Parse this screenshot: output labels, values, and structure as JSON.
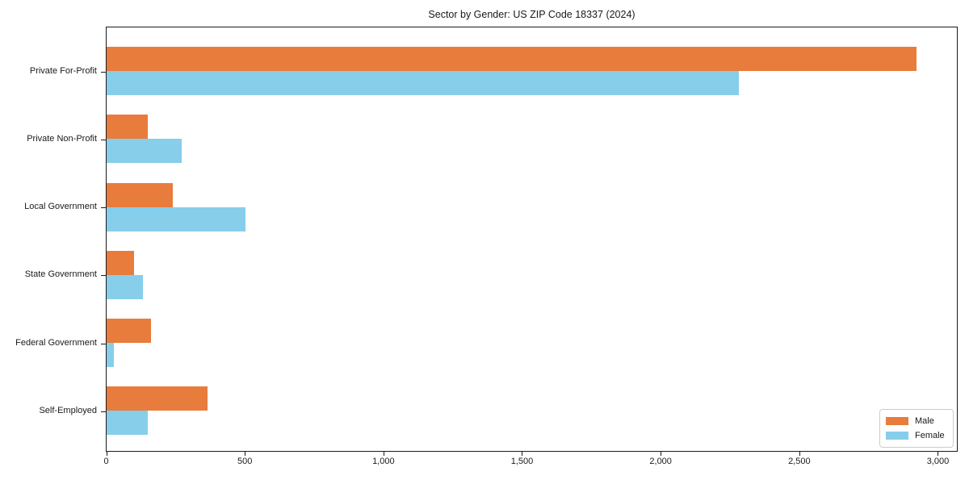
{
  "title": "Sector by Gender: US ZIP Code 18337 (2024)",
  "chart_data": {
    "type": "bar",
    "orientation": "horizontal",
    "title": "Sector by Gender: US ZIP Code 18337 (2024)",
    "xlabel": "",
    "ylabel": "",
    "categories": [
      "Private For-Profit",
      "Private Non-Profit",
      "Local Government",
      "State Government",
      "Federal Government",
      "Self-Employed"
    ],
    "series": [
      {
        "name": "Male",
        "color": "#E87C3C",
        "values": [
          2920,
          150,
          240,
          100,
          160,
          365
        ]
      },
      {
        "name": "Female",
        "color": "#87CEEB",
        "values": [
          2280,
          270,
          500,
          130,
          25,
          150
        ]
      }
    ],
    "xlim": [
      0,
      3067
    ],
    "x_ticks": [
      0,
      500,
      1000,
      1500,
      2000,
      2500,
      3000
    ],
    "x_tick_labels": [
      "0",
      "500",
      "1,000",
      "1,500",
      "2,000",
      "2,500",
      "3,000"
    ],
    "grid": false,
    "legend_position": "lower right"
  }
}
